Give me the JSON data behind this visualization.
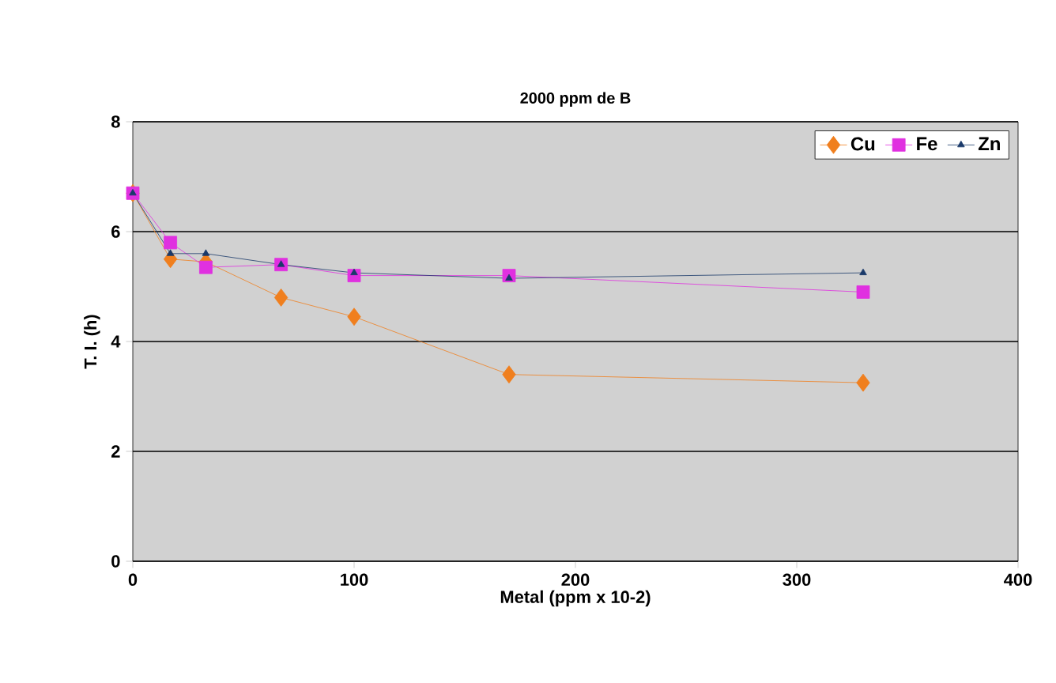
{
  "chart_data": {
    "type": "line",
    "title": "2000 ppm de B",
    "xlabel": "Metal (ppm x 10-2)",
    "ylabel": "T. I. (h)",
    "x": [
      0,
      17,
      33,
      67,
      100,
      170,
      330
    ],
    "series": [
      {
        "name": "Cu",
        "color": "#f07f1e",
        "marker": "diamond",
        "values": [
          6.7,
          5.5,
          5.45,
          4.8,
          4.45,
          3.4,
          3.25
        ]
      },
      {
        "name": "Fe",
        "color": "#e030e0",
        "marker": "square",
        "values": [
          6.7,
          5.8,
          5.35,
          5.4,
          5.2,
          5.2,
          4.9
        ]
      },
      {
        "name": "Zn",
        "color": "#1a3a6a",
        "marker": "triangle",
        "values": [
          6.7,
          5.6,
          5.6,
          5.4,
          5.25,
          5.15,
          5.25
        ]
      }
    ],
    "xlim": [
      0,
      400
    ],
    "xticks": [
      0,
      100,
      200,
      300,
      400
    ],
    "ylim": [
      0,
      8
    ],
    "yticks": [
      0,
      2,
      4,
      6,
      8
    ],
    "grid": "y",
    "legend": "top right"
  }
}
